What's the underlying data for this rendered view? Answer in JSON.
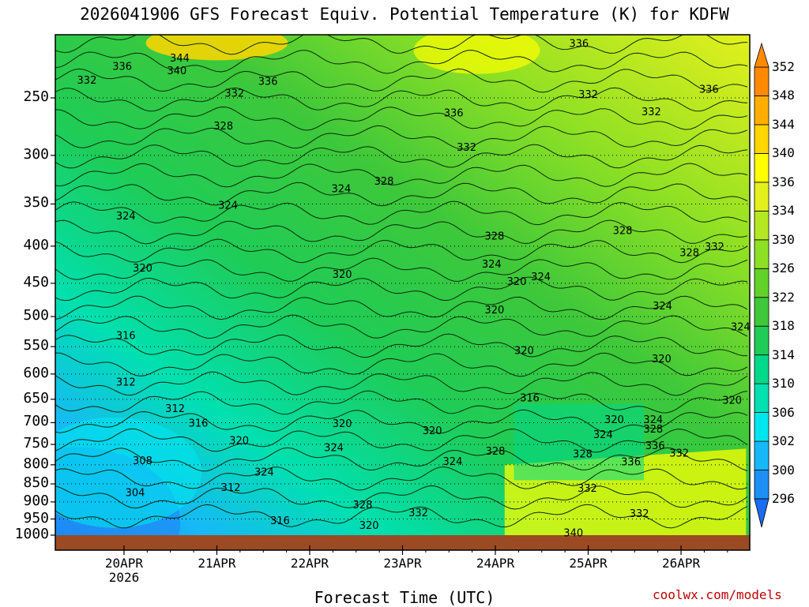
{
  "chart_data": {
    "type": "heatmap",
    "title": "2026041906 GFS Forecast Equiv. Potential Temperature (K) for KDFW",
    "xlabel": "Forecast Time (UTC)",
    "ylabel": "",
    "x_ticks": [
      "20APR",
      "21APR",
      "22APR",
      "23APR",
      "24APR",
      "25APR",
      "26APR"
    ],
    "x_tick_sublabels": [
      "2026",
      "",
      "",
      "",
      "",
      "",
      ""
    ],
    "xlim_days": [
      19.26,
      26.74
    ],
    "y_ticks": [
      250,
      300,
      350,
      400,
      450,
      500,
      550,
      600,
      650,
      700,
      750,
      800,
      850,
      900,
      950,
      1000
    ],
    "ylim_hpa": [
      1000,
      200
    ],
    "colorbar": {
      "levels": [
        296,
        300,
        302,
        306,
        310,
        314,
        318,
        322,
        326,
        330,
        334,
        336,
        340,
        344,
        348,
        352
      ],
      "colors": [
        "#1a6cf0",
        "#1e90f5",
        "#17b8f8",
        "#00e6ee",
        "#00e0b0",
        "#00d98a",
        "#1fcc56",
        "#3ec83a",
        "#62d22a",
        "#8ee024",
        "#b4e820",
        "#e4f01c",
        "#ffff00",
        "#ffd600",
        "#ffae00",
        "#ff8a00"
      ]
    },
    "contour_labels": [
      {
        "t": 19.6,
        "p": 236,
        "v": "332"
      },
      {
        "t": 19.98,
        "p": 226,
        "v": "336"
      },
      {
        "t": 20.6,
        "p": 220,
        "v": "344"
      },
      {
        "t": 20.57,
        "p": 229,
        "v": "340"
      },
      {
        "t": 21.55,
        "p": 237,
        "v": "336"
      },
      {
        "t": 21.19,
        "p": 246,
        "v": "332"
      },
      {
        "t": 21.07,
        "p": 273,
        "v": "328"
      },
      {
        "t": 20.02,
        "p": 363,
        "v": "324"
      },
      {
        "t": 21.12,
        "p": 351,
        "v": "324"
      },
      {
        "t": 20.2,
        "p": 428,
        "v": "320"
      },
      {
        "t": 20.02,
        "p": 530,
        "v": "316"
      },
      {
        "t": 20.02,
        "p": 615,
        "v": "312"
      },
      {
        "t": 20.55,
        "p": 668,
        "v": "312"
      },
      {
        "t": 20.8,
        "p": 700,
        "v": "316"
      },
      {
        "t": 21.24,
        "p": 740,
        "v": "320"
      },
      {
        "t": 20.2,
        "p": 788,
        "v": "308"
      },
      {
        "t": 20.12,
        "p": 873,
        "v": "304"
      },
      {
        "t": 21.15,
        "p": 858,
        "v": "312"
      },
      {
        "t": 21.51,
        "p": 818,
        "v": "324"
      },
      {
        "t": 21.68,
        "p": 953,
        "v": "316"
      },
      {
        "t": 22.34,
        "p": 333,
        "v": "324"
      },
      {
        "t": 22.8,
        "p": 325,
        "v": "328"
      },
      {
        "t": 22.35,
        "p": 437,
        "v": "320"
      },
      {
        "t": 22.26,
        "p": 757,
        "v": "324"
      },
      {
        "t": 22.35,
        "p": 701,
        "v": "320"
      },
      {
        "t": 22.64,
        "p": 968,
        "v": "320"
      },
      {
        "t": 22.57,
        "p": 907,
        "v": "328"
      },
      {
        "t": 23.17,
        "p": 930,
        "v": "332"
      },
      {
        "t": 23.32,
        "p": 717,
        "v": "320"
      },
      {
        "t": 23.54,
        "p": 790,
        "v": "324"
      },
      {
        "t": 23.55,
        "p": 262,
        "v": "336"
      },
      {
        "t": 23.69,
        "p": 292,
        "v": "332"
      },
      {
        "t": 23.99,
        "p": 387,
        "v": "328"
      },
      {
        "t": 23.96,
        "p": 423,
        "v": "324"
      },
      {
        "t": 23.99,
        "p": 489,
        "v": "320"
      },
      {
        "t": 24.23,
        "p": 447,
        "v": "320"
      },
      {
        "t": 24.49,
        "p": 440,
        "v": "324"
      },
      {
        "t": 24.31,
        "p": 556,
        "v": "320"
      },
      {
        "t": 24.37,
        "p": 646,
        "v": "316"
      },
      {
        "t": 24.0,
        "p": 765,
        "v": "328"
      },
      {
        "t": 24.9,
        "p": 210,
        "v": "336"
      },
      {
        "t": 25.0,
        "p": 247,
        "v": "332"
      },
      {
        "t": 25.68,
        "p": 261,
        "v": "332"
      },
      {
        "t": 26.3,
        "p": 243,
        "v": "336"
      },
      {
        "t": 25.37,
        "p": 380,
        "v": "328"
      },
      {
        "t": 26.09,
        "p": 408,
        "v": "328"
      },
      {
        "t": 26.36,
        "p": 400,
        "v": "332"
      },
      {
        "t": 25.8,
        "p": 483,
        "v": "324"
      },
      {
        "t": 26.64,
        "p": 516,
        "v": "324"
      },
      {
        "t": 25.79,
        "p": 571,
        "v": "320"
      },
      {
        "t": 26.55,
        "p": 651,
        "v": "320"
      },
      {
        "t": 25.28,
        "p": 692,
        "v": "320"
      },
      {
        "t": 25.16,
        "p": 726,
        "v": "324"
      },
      {
        "t": 24.94,
        "p": 772,
        "v": "328"
      },
      {
        "t": 25.46,
        "p": 791,
        "v": "336"
      },
      {
        "t": 24.99,
        "p": 861,
        "v": "332"
      },
      {
        "t": 25.7,
        "p": 692,
        "v": "324"
      },
      {
        "t": 25.7,
        "p": 713,
        "v": "328"
      },
      {
        "t": 25.72,
        "p": 752,
        "v": "336"
      },
      {
        "t": 25.98,
        "p": 770,
        "v": "332"
      },
      {
        "t": 25.55,
        "p": 932,
        "v": "332"
      },
      {
        "t": 24.84,
        "p": 991,
        "v": "340"
      }
    ]
  },
  "credit": "coolwx.com/models"
}
